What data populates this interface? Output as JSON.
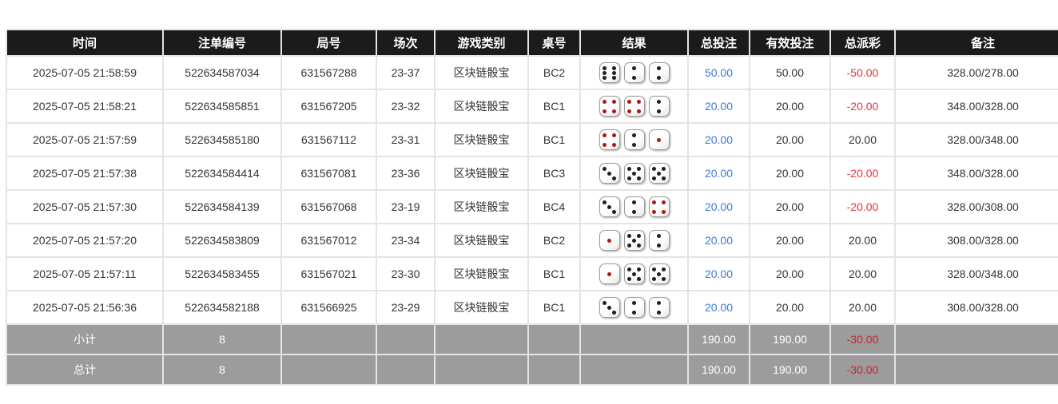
{
  "table": {
    "columns": [
      {
        "key": "time",
        "label": "时间"
      },
      {
        "key": "bet_id",
        "label": "注单编号"
      },
      {
        "key": "round_id",
        "label": "局号"
      },
      {
        "key": "session",
        "label": "场次"
      },
      {
        "key": "game_type",
        "label": "游戏类别"
      },
      {
        "key": "table_no",
        "label": "桌号"
      },
      {
        "key": "result",
        "label": "结果"
      },
      {
        "key": "total_bet",
        "label": "总投注"
      },
      {
        "key": "valid_bet",
        "label": "有效投注"
      },
      {
        "key": "total_payout",
        "label": "总派彩"
      },
      {
        "key": "remark",
        "label": "备注"
      }
    ],
    "rows": [
      {
        "time": "2025-07-05 21:58:59",
        "bet_id": "522634587034",
        "round_id": "631567288",
        "session": "23-37",
        "game_type": "区块链骰宝",
        "table_no": "BC2",
        "dice": [
          6,
          2,
          2
        ],
        "total_bet": "50.00",
        "valid_bet": "50.00",
        "total_payout": "-50.00",
        "remark": "328.00/278.00"
      },
      {
        "time": "2025-07-05 21:58:21",
        "bet_id": "522634585851",
        "round_id": "631567205",
        "session": "23-32",
        "game_type": "区块链骰宝",
        "table_no": "BC1",
        "dice": [
          4,
          4,
          2
        ],
        "total_bet": "20.00",
        "valid_bet": "20.00",
        "total_payout": "-20.00",
        "remark": "348.00/328.00"
      },
      {
        "time": "2025-07-05 21:57:59",
        "bet_id": "522634585180",
        "round_id": "631567112",
        "session": "23-31",
        "game_type": "区块链骰宝",
        "table_no": "BC1",
        "dice": [
          4,
          2,
          1
        ],
        "total_bet": "20.00",
        "valid_bet": "20.00",
        "total_payout": "20.00",
        "remark": "328.00/348.00"
      },
      {
        "time": "2025-07-05 21:57:38",
        "bet_id": "522634584414",
        "round_id": "631567081",
        "session": "23-36",
        "game_type": "区块链骰宝",
        "table_no": "BC3",
        "dice": [
          3,
          5,
          5
        ],
        "total_bet": "20.00",
        "valid_bet": "20.00",
        "total_payout": "-20.00",
        "remark": "348.00/328.00"
      },
      {
        "time": "2025-07-05 21:57:30",
        "bet_id": "522634584139",
        "round_id": "631567068",
        "session": "23-19",
        "game_type": "区块链骰宝",
        "table_no": "BC4",
        "dice": [
          3,
          2,
          4
        ],
        "total_bet": "20.00",
        "valid_bet": "20.00",
        "total_payout": "-20.00",
        "remark": "328.00/308.00"
      },
      {
        "time": "2025-07-05 21:57:20",
        "bet_id": "522634583809",
        "round_id": "631567012",
        "session": "23-34",
        "game_type": "区块链骰宝",
        "table_no": "BC2",
        "dice": [
          1,
          5,
          2
        ],
        "total_bet": "20.00",
        "valid_bet": "20.00",
        "total_payout": "20.00",
        "remark": "308.00/328.00"
      },
      {
        "time": "2025-07-05 21:57:11",
        "bet_id": "522634583455",
        "round_id": "631567021",
        "session": "23-30",
        "game_type": "区块链骰宝",
        "table_no": "BC1",
        "dice": [
          1,
          5,
          5
        ],
        "total_bet": "20.00",
        "valid_bet": "20.00",
        "total_payout": "20.00",
        "remark": "328.00/348.00"
      },
      {
        "time": "2025-07-05 21:56:36",
        "bet_id": "522634582188",
        "round_id": "631566925",
        "session": "23-29",
        "game_type": "区块链骰宝",
        "table_no": "BC1",
        "dice": [
          3,
          2,
          2
        ],
        "total_bet": "20.00",
        "valid_bet": "20.00",
        "total_payout": "20.00",
        "remark": "308.00/328.00"
      }
    ],
    "footer": [
      {
        "label": "小计",
        "count": "8",
        "total_bet": "190.00",
        "valid_bet": "190.00",
        "total_payout": "-30.00"
      },
      {
        "label": "总计",
        "count": "8",
        "total_bet": "190.00",
        "valid_bet": "190.00",
        "total_payout": "-30.00"
      }
    ]
  },
  "colors": {
    "header_bg": "#1b1b1b",
    "footer_bg": "#9c9c9c",
    "bet_link_blue": "#3a7bd5",
    "negative_red": "#e8333d",
    "footer_negative_red": "#cf1f2f",
    "dice_red_pip": "#b41318"
  },
  "dice_red_values": [
    1,
    4
  ]
}
